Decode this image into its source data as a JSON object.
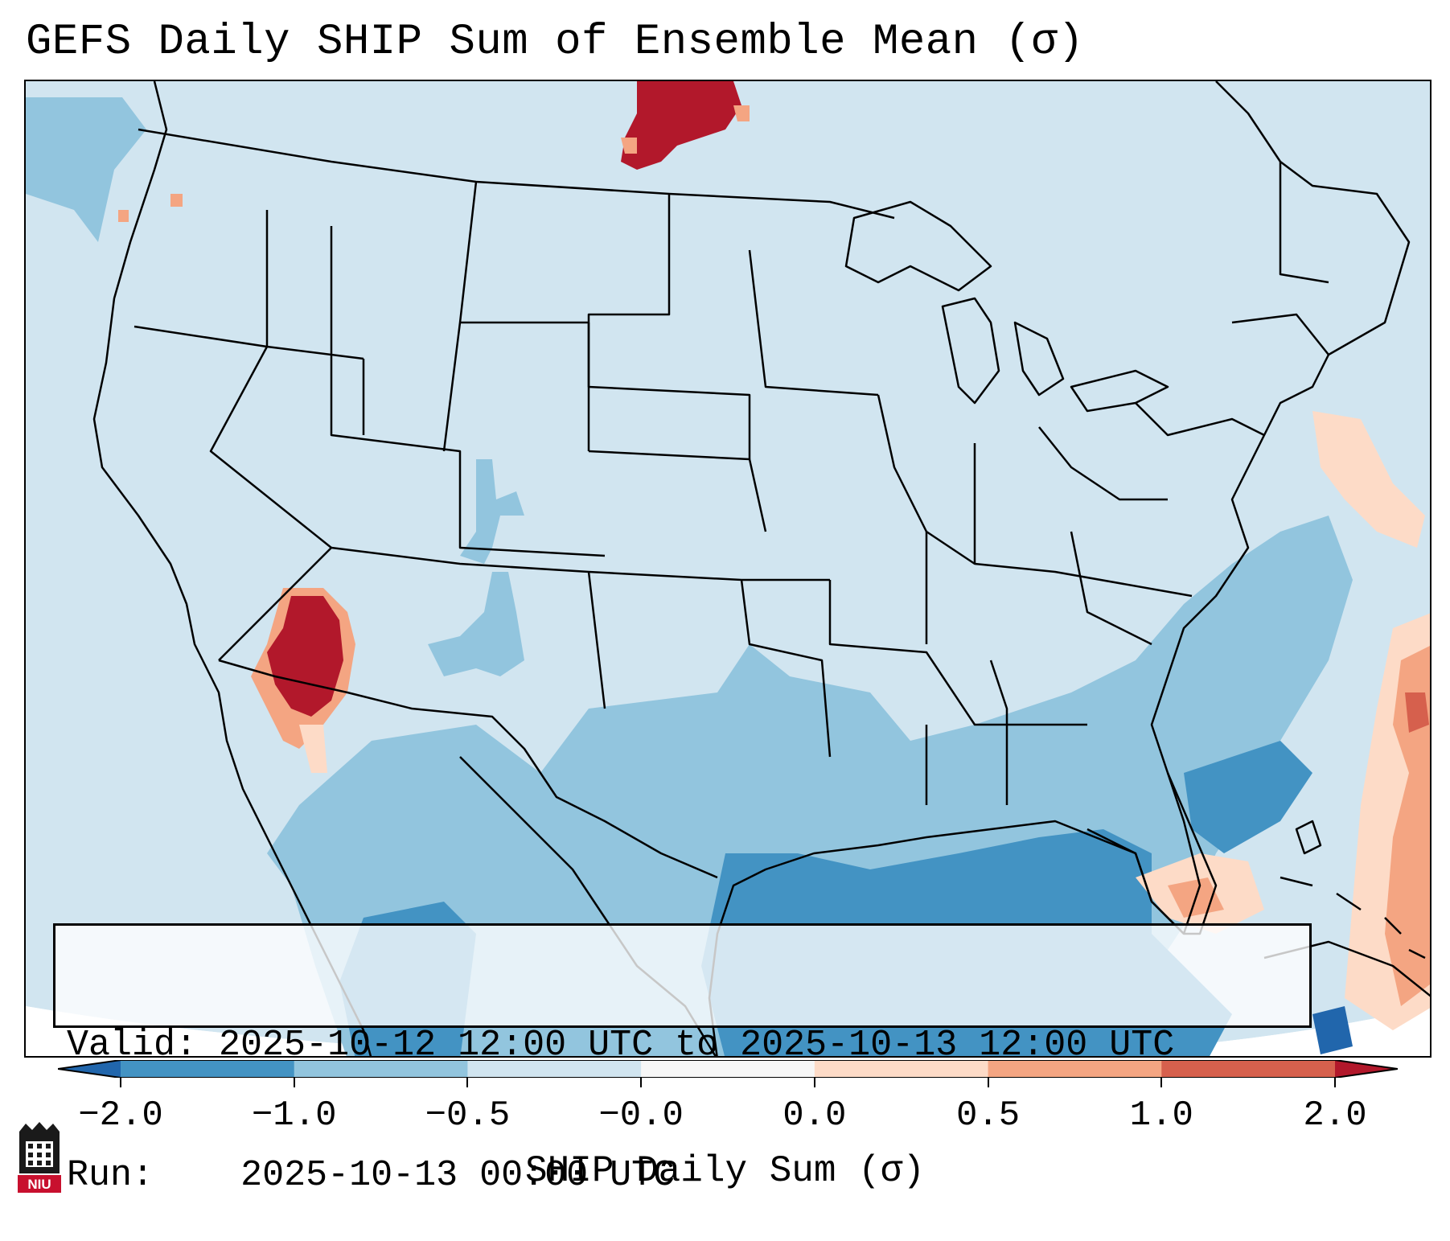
{
  "title": "GEFS Daily SHIP Sum of Ensemble Mean (σ)",
  "info": {
    "valid_label": "Valid:",
    "valid_value": "2025-10-12 12:00 UTC to 2025-10-13 12:00 UTC",
    "run_label": "Run:",
    "run_value": "2025-10-13 00:00 UTC"
  },
  "colorbar": {
    "label": "SHIP Daily Sum (σ)",
    "tick_labels": [
      "−2.0",
      "−1.0",
      "−0.5",
      "−0.0",
      "0.0",
      "0.5",
      "1.0",
      "2.0"
    ],
    "colors": [
      "#2166ac",
      "#4393c3",
      "#92c5de",
      "#d1e5f0",
      "#fddbc7",
      "#f4a582",
      "#d6604d",
      "#b2182b"
    ],
    "under_color": "#2166ac",
    "over_color": "#b2182b"
  },
  "logo": {
    "text": "NIU",
    "icon": "niu-building-logo-icon"
  },
  "map": {
    "region": "CONUS",
    "background_value_color": "#d1e5f0",
    "features": [
      {
        "name": "four-corners-high",
        "level": "2.0+",
        "color": "#b2182b"
      },
      {
        "name": "north-dakota-canada-high",
        "level": "2.0+",
        "color": "#b2182b"
      },
      {
        "name": "gulf-coast-low",
        "level": "-1.0 to -2.0",
        "color": "#4393c3"
      },
      {
        "name": "atlantic-positive",
        "level": "0.0 to 1.0",
        "color": "#f4a582"
      }
    ]
  }
}
